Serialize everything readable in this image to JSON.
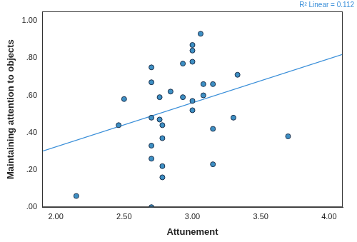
{
  "chart_data": {
    "type": "scatter",
    "x_label": "Attunement",
    "y_label": "Maintaining attention to objects",
    "annotation": "R² Linear = 0.112",
    "x": [
      2.15,
      2.46,
      2.5,
      2.7,
      2.7,
      2.7,
      2.7,
      2.7,
      2.7,
      2.76,
      2.76,
      2.78,
      2.78,
      2.78,
      2.78,
      2.84,
      2.93,
      2.93,
      3.0,
      3.0,
      3.0,
      3.0,
      3.0,
      3.06,
      3.08,
      3.08,
      3.15,
      3.15,
      3.15,
      3.3,
      3.33,
      3.7
    ],
    "values": [
      0.06,
      0.44,
      0.58,
      0.75,
      0.67,
      0.48,
      0.33,
      0.26,
      0.0,
      0.59,
      0.47,
      0.44,
      0.37,
      0.22,
      0.16,
      0.62,
      0.77,
      0.59,
      0.87,
      0.84,
      0.78,
      0.57,
      0.52,
      0.93,
      0.66,
      0.6,
      0.66,
      0.42,
      0.23,
      0.48,
      0.71,
      0.38
    ],
    "color": "#3d8fc4",
    "marker": "circle",
    "fit": {
      "x": [
        1.9,
        4.1
      ],
      "values": [
        0.3,
        0.82
      ],
      "color": "#3a8fd9"
    },
    "xlim": [
      1.9,
      4.1
    ],
    "xticks": [
      {
        "value": 2,
        "label": "2.00"
      },
      {
        "value": 2.5,
        "label": "2.50"
      },
      {
        "value": 3,
        "label": "3.00"
      },
      {
        "value": 3.5,
        "label": "3.50"
      },
      {
        "value": 4,
        "label": "4.00"
      }
    ],
    "ylim": [
      0,
      1.05
    ],
    "yticks": [
      {
        "value": 0,
        "label": ".00"
      },
      {
        "value": 0.2,
        "label": ".20"
      },
      {
        "value": 0.4,
        "label": ".40"
      },
      {
        "value": 0.6,
        "label": ".60"
      },
      {
        "value": 0.8,
        "label": ".80"
      },
      {
        "value": 1,
        "label": "1.00"
      }
    ],
    "grid": false
  }
}
